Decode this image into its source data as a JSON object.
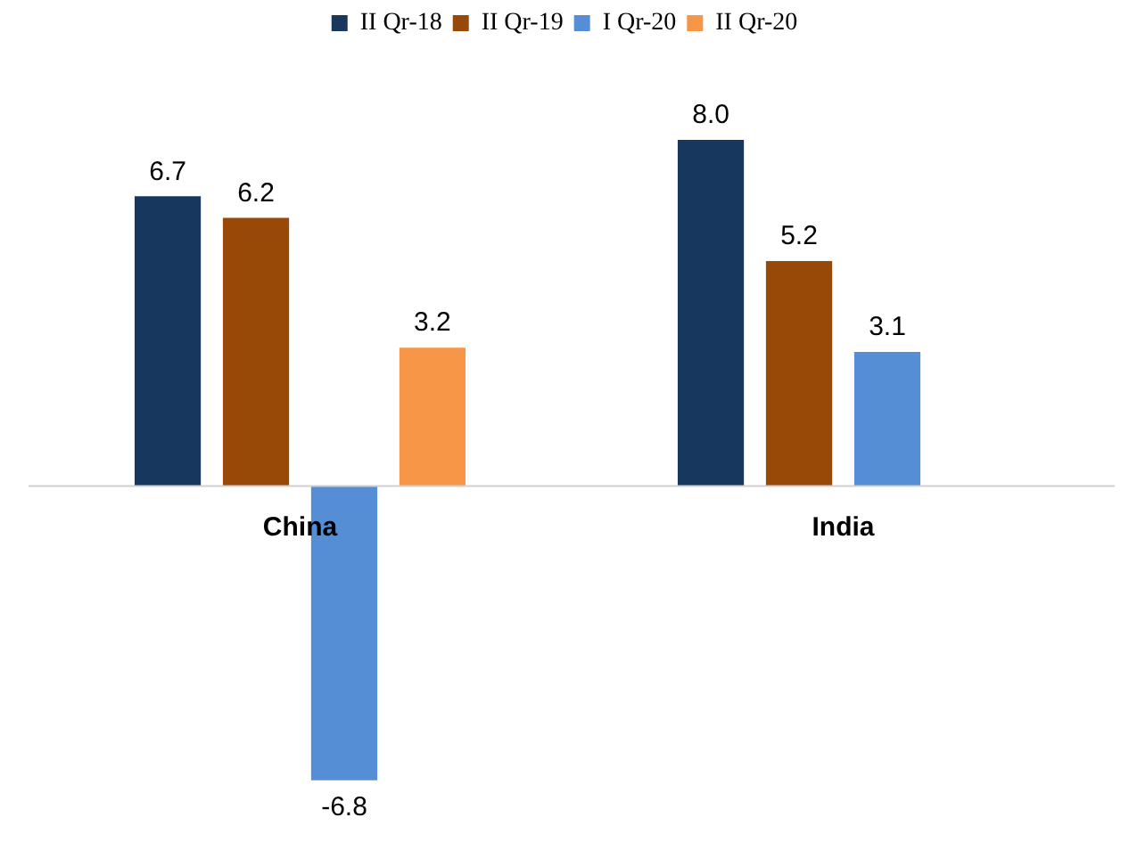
{
  "chart_data": {
    "type": "bar",
    "categories": [
      "China",
      "India"
    ],
    "series": [
      {
        "name": "II Qr-18",
        "color": "#17375e",
        "values": [
          6.7,
          8.0
        ],
        "value_labels": [
          "6.7",
          "8.0"
        ]
      },
      {
        "name": "II Qr-19",
        "color": "#984807",
        "values": [
          6.2,
          5.2
        ],
        "value_labels": [
          "6.2",
          "5.2"
        ]
      },
      {
        "name": "I Qr-20",
        "color": "#558ed5",
        "values": [
          -6.8,
          3.1
        ],
        "value_labels": [
          "-6.8",
          "3.1"
        ]
      },
      {
        "name": "II Qr-20",
        "color": "#f79646",
        "values": [
          3.2,
          null
        ],
        "value_labels": [
          "3.2",
          null
        ]
      }
    ],
    "legend": "top"
  }
}
